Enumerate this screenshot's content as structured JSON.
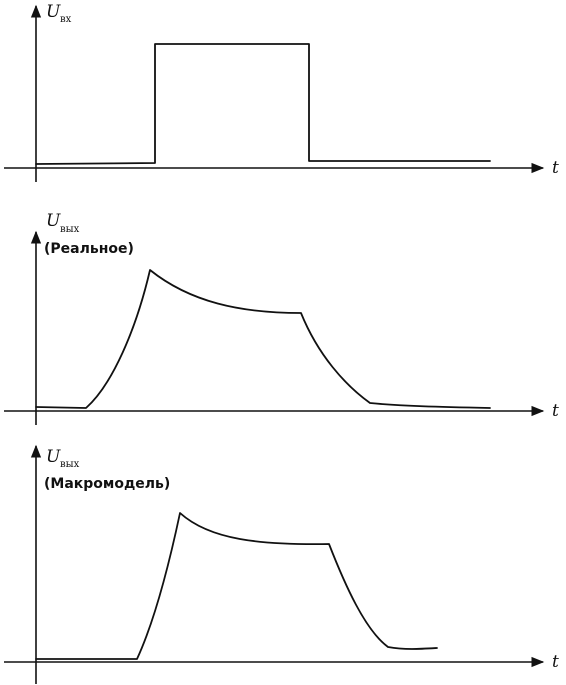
{
  "panels": [
    {
      "y_label": "U",
      "y_label_sub": "вх",
      "x_label": "t",
      "caption": ""
    },
    {
      "y_label": "U",
      "y_label_sub": "вых",
      "x_label": "t",
      "caption": "(Реальное)"
    },
    {
      "y_label": "U",
      "y_label_sub": "вых",
      "x_label": "t",
      "caption": "(Макромодель)"
    }
  ]
}
